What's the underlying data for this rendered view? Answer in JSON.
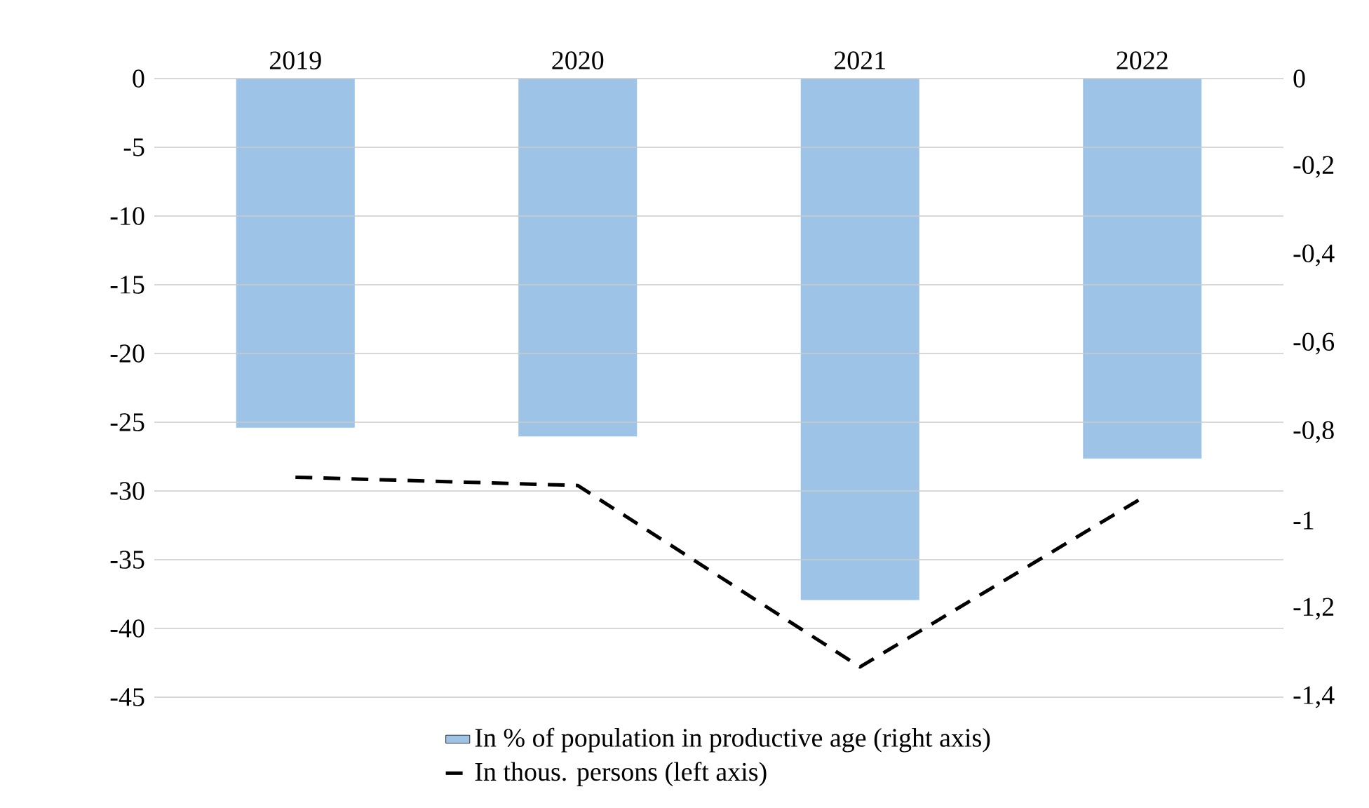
{
  "chart_data": {
    "type": "bar",
    "categories": [
      "2019",
      "2020",
      "2021",
      "2022"
    ],
    "series": [
      {
        "name": "In % of population in productive age (right axis)",
        "axis": "y2",
        "color": "#9dc3e6",
        "values": [
          -0.79,
          -0.81,
          -1.18,
          -0.86
        ]
      },
      {
        "name": "In thous. persons (left axis)",
        "type": "line",
        "axis": "y",
        "color": "#000000",
        "line_style": "dashed",
        "values": [
          -29.0,
          -29.6,
          -42.8,
          -30.5
        ]
      }
    ],
    "ylim": [
      -45,
      0
    ],
    "yticks": [
      -45,
      -40,
      -35,
      -30,
      -25,
      -20,
      -15,
      -10,
      -5,
      0
    ],
    "y2lim": [
      -1.4,
      0
    ],
    "y2ticks": [
      {
        "value": -1.4,
        "label": "-1,4"
      },
      {
        "value": -1.2,
        "label": "-1,2"
      },
      {
        "value": -1,
        "label": "-1"
      },
      {
        "value": -0.8,
        "label": "-0,8"
      },
      {
        "value": -0.6,
        "label": "-0,6"
      },
      {
        "value": -0.4,
        "label": "-0,4"
      },
      {
        "value": -0.2,
        "label": "-0,2"
      },
      {
        "value": 0,
        "label": "0"
      }
    ],
    "grid": "y",
    "legend": "bottom"
  }
}
